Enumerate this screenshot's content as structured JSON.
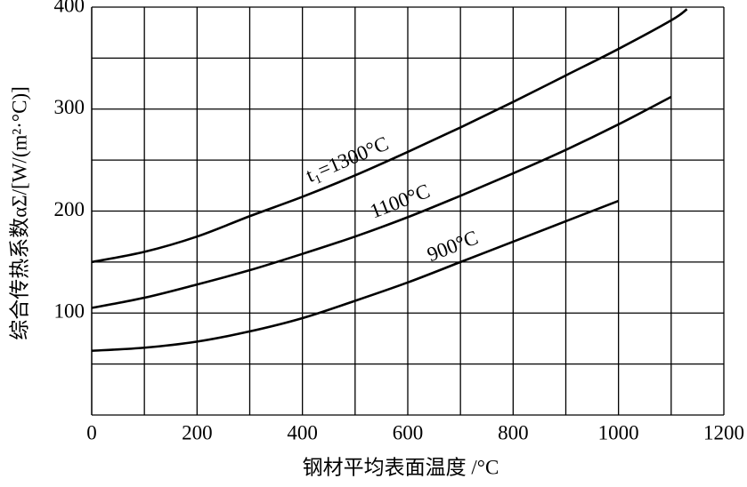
{
  "chart_data": {
    "type": "line",
    "x_label": "钢材平均表面温度 /°C",
    "y_label": "综合传热系数αΣ/[W/(m²·°C)]",
    "xlim": [
      0,
      1200
    ],
    "xticks": [
      0,
      200,
      400,
      600,
      800,
      1000,
      1200
    ],
    "x_minor_grid": [
      100,
      300,
      500,
      700,
      900,
      1100
    ],
    "ylim": [
      0,
      400
    ],
    "yticks": [
      100,
      200,
      300,
      400
    ],
    "y_minor_grid": [
      50,
      150,
      250,
      350
    ],
    "grid": true,
    "series": [
      {
        "name": "t₁=1300°C",
        "color": "#000000",
        "x": [
          0,
          100,
          200,
          300,
          400,
          500,
          600,
          700,
          800,
          900,
          1000,
          1100,
          1130
        ],
        "values": [
          150,
          160,
          175,
          195,
          214,
          235,
          258,
          282,
          307,
          333,
          359,
          387,
          398
        ]
      },
      {
        "name": "1100°C",
        "color": "#000000",
        "x": [
          0,
          100,
          200,
          300,
          400,
          500,
          600,
          700,
          800,
          900,
          1000,
          1100
        ],
        "values": [
          105,
          115,
          128,
          142,
          158,
          175,
          194,
          215,
          237,
          260,
          285,
          312
        ]
      },
      {
        "name": "900°C",
        "color": "#000000",
        "x": [
          0,
          100,
          200,
          300,
          400,
          500,
          600,
          700,
          800,
          900,
          1000
        ],
        "values": [
          63,
          66,
          72,
          82,
          95,
          112,
          130,
          150,
          170,
          190,
          210
        ]
      }
    ]
  }
}
